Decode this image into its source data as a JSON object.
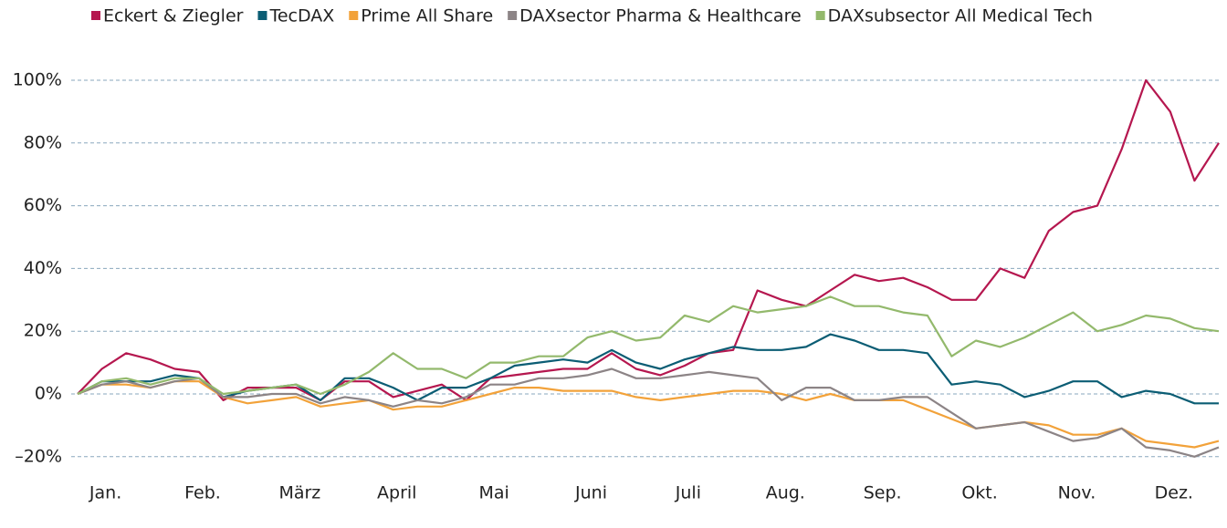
{
  "chart_data": {
    "type": "line",
    "categories": [
      null,
      "Jan.",
      null,
      null,
      null,
      "Feb.",
      null,
      null,
      null,
      "März",
      null,
      null,
      null,
      "April",
      null,
      null,
      null,
      "Mai",
      null,
      null,
      null,
      "Juni",
      null,
      null,
      null,
      "Juli",
      null,
      null,
      null,
      "Aug.",
      null,
      null,
      null,
      "Sep.",
      null,
      null,
      null,
      "Okt.",
      null,
      null,
      null,
      "Nov.",
      null,
      null,
      null,
      "Dez.",
      null,
      null
    ],
    "ylim": [
      -25,
      110
    ],
    "yticks": [
      {
        "value": -20,
        "label": "–20%"
      },
      {
        "value": 0,
        "label": "0%"
      },
      {
        "value": 20,
        "label": "20%"
      },
      {
        "value": 40,
        "label": "40%"
      },
      {
        "value": 60,
        "label": "60%"
      },
      {
        "value": 80,
        "label": "80%"
      },
      {
        "value": 100,
        "label": "100%"
      }
    ],
    "grid": true,
    "legend": "top",
    "series": [
      {
        "name": "Eckert & Ziegler",
        "color": "#b5174f",
        "values": [
          0,
          8,
          13,
          11,
          8,
          7,
          -2,
          2,
          2,
          2,
          -2,
          4,
          4,
          -1,
          1,
          3,
          -2,
          5,
          6,
          7,
          8,
          8,
          13,
          8,
          6,
          9,
          13,
          14,
          33,
          30,
          28,
          33,
          38,
          36,
          37,
          34,
          30,
          30,
          40,
          37,
          52,
          58,
          60,
          78,
          100,
          90,
          68,
          80
        ]
      },
      {
        "name": "TecDAX",
        "color": "#0b5d74",
        "values": [
          0,
          4,
          4,
          4,
          6,
          5,
          -1,
          1,
          2,
          3,
          -2,
          5,
          5,
          2,
          -2,
          2,
          2,
          5,
          9,
          10,
          11,
          10,
          14,
          10,
          8,
          11,
          13,
          15,
          14,
          14,
          15,
          19,
          17,
          14,
          14,
          13,
          3,
          4,
          3,
          -1,
          1,
          4,
          4,
          -1,
          1,
          0,
          -3,
          -3
        ]
      },
      {
        "name": "Prime All Share",
        "color": "#f2a23a",
        "values": [
          0,
          3,
          3,
          2,
          4,
          4,
          -1,
          -3,
          -2,
          -1,
          -4,
          -3,
          -2,
          -5,
          -4,
          -4,
          -2,
          0,
          2,
          2,
          1,
          1,
          1,
          -1,
          -2,
          -1,
          0,
          1,
          1,
          0,
          -2,
          0,
          -2,
          -2,
          -2,
          -5,
          -8,
          -11,
          -10,
          -9,
          -10,
          -13,
          -13,
          -11,
          -15,
          -16,
          -17,
          -15
        ]
      },
      {
        "name": "DAXsector Pharma & Healthcare",
        "color": "#8c8486",
        "values": [
          0,
          3,
          4,
          2,
          4,
          5,
          -1,
          -1,
          0,
          0,
          -3,
          -1,
          -2,
          -4,
          -2,
          -3,
          -1,
          3,
          3,
          5,
          5,
          6,
          8,
          5,
          5,
          6,
          7,
          6,
          5,
          -2,
          2,
          2,
          -2,
          -2,
          -1,
          -1,
          -6,
          -11,
          -10,
          -9,
          -12,
          -15,
          -14,
          -11,
          -17,
          -18,
          -20,
          -17
        ]
      },
      {
        "name": "DAXsubsector All Medical Tech",
        "color": "#93b96c",
        "values": [
          0,
          4,
          5,
          3,
          5,
          5,
          0,
          1,
          2,
          3,
          0,
          3,
          7,
          13,
          8,
          8,
          5,
          10,
          10,
          12,
          12,
          18,
          20,
          17,
          18,
          25,
          23,
          28,
          26,
          27,
          28,
          31,
          28,
          28,
          26,
          25,
          12,
          17,
          15,
          18,
          22,
          26,
          20,
          22,
          25,
          24,
          21,
          20
        ]
      }
    ]
  }
}
